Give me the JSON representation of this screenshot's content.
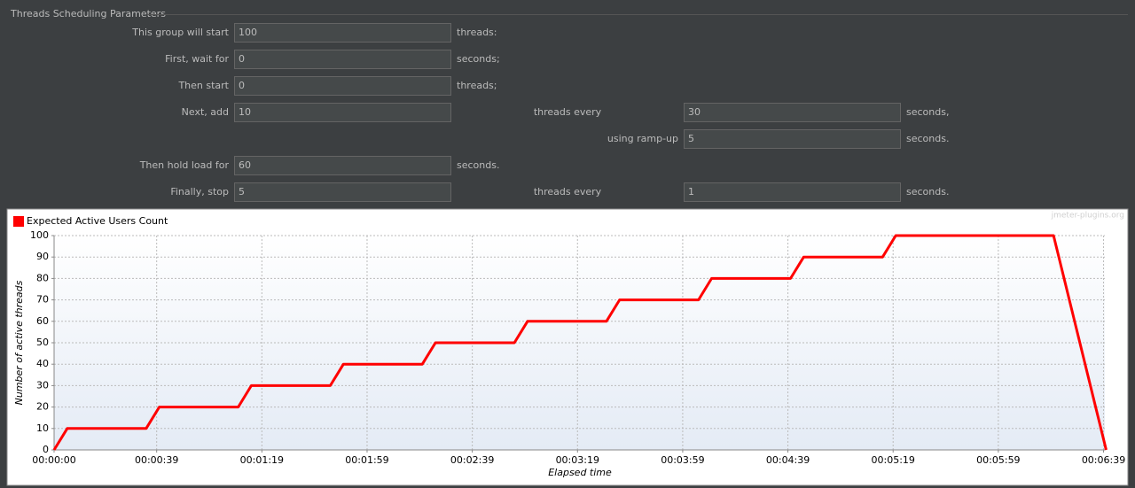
{
  "panel_title": "Threads Scheduling Parameters",
  "form": {
    "rows": [
      {
        "label": "This group will start",
        "value": "100",
        "suffix": "threads:"
      },
      {
        "label": "First, wait for",
        "value": "0",
        "suffix": "seconds;"
      },
      {
        "label": "Then start",
        "value": "0",
        "suffix": "threads;"
      },
      {
        "label": "Next, add",
        "value": "10",
        "mid_label": "threads every",
        "mid_value": "30",
        "suffix": "seconds,"
      },
      {
        "mid_label": "using ramp-up",
        "mid_value": "5",
        "suffix": "seconds."
      },
      {
        "label": "Then hold load for",
        "value": "60",
        "suffix": "seconds."
      },
      {
        "label": "Finally, stop",
        "value": "5",
        "mid_label": "threads every",
        "mid_value": "1",
        "suffix": "seconds."
      }
    ]
  },
  "chart_data": {
    "type": "line",
    "watermark": "jmeter-plugins.org",
    "x_label": "Elapsed time",
    "y_label": "Number of active threads",
    "xlim": [
      0,
      400
    ],
    "xticks": [
      {
        "value": 0,
        "label": "00:00:00"
      },
      {
        "value": 39,
        "label": "00:00:39"
      },
      {
        "value": 79,
        "label": "00:01:19"
      },
      {
        "value": 119,
        "label": "00:01:59"
      },
      {
        "value": 159,
        "label": "00:02:39"
      },
      {
        "value": 199,
        "label": "00:03:19"
      },
      {
        "value": 239,
        "label": "00:03:59"
      },
      {
        "value": 279,
        "label": "00:04:39"
      },
      {
        "value": 319,
        "label": "00:05:19"
      },
      {
        "value": 359,
        "label": "00:05:59"
      },
      {
        "value": 399,
        "label": "00:06:39"
      }
    ],
    "ylim": [
      0,
      100
    ],
    "yticks": [
      0,
      10,
      20,
      30,
      40,
      50,
      60,
      70,
      80,
      90,
      100
    ],
    "grid": true,
    "legend": "top-left",
    "series": [
      {
        "name": "Expected Active Users Count",
        "color": "#ff0000",
        "x": [
          0,
          5,
          35,
          40,
          70,
          75,
          105,
          110,
          140,
          145,
          175,
          180,
          210,
          215,
          245,
          250,
          280,
          285,
          315,
          320,
          380,
          381,
          382,
          383,
          384,
          385,
          386,
          387,
          388,
          389,
          390,
          391,
          392,
          393,
          394,
          395,
          396,
          397,
          398,
          399,
          400
        ],
        "values": [
          0,
          10,
          10,
          20,
          20,
          30,
          30,
          40,
          40,
          50,
          50,
          60,
          60,
          70,
          70,
          80,
          80,
          90,
          90,
          100,
          100,
          95,
          90,
          85,
          80,
          75,
          70,
          65,
          60,
          55,
          50,
          45,
          40,
          35,
          30,
          25,
          20,
          15,
          10,
          5,
          0
        ]
      }
    ]
  }
}
